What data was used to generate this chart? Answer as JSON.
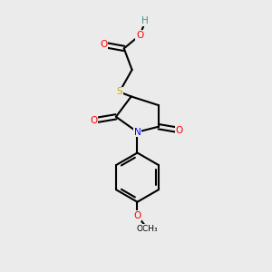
{
  "background_color": "#ebebeb",
  "atom_colors": {
    "C": "#000000",
    "H": "#4a9090",
    "O": "#ff0000",
    "N": "#0000ff",
    "S": "#ccaa00"
  },
  "bond_color": "#000000",
  "bond_width": 1.5,
  "figsize": [
    3.0,
    3.0
  ],
  "dpi": 100
}
